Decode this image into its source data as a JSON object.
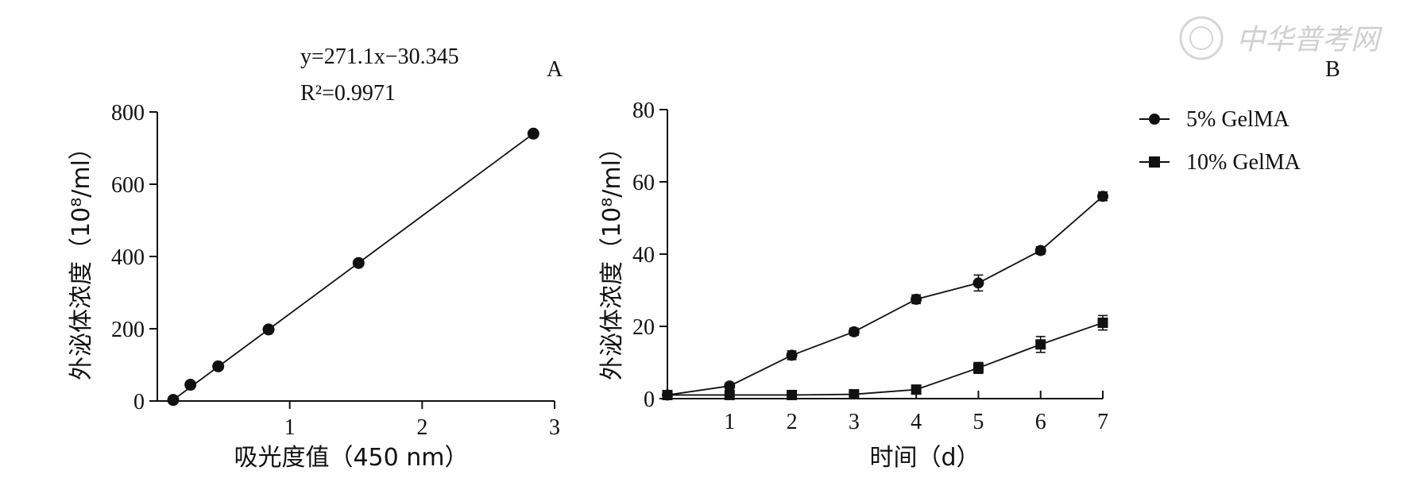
{
  "watermark": {
    "text": "中华普考网"
  },
  "chart_data": [
    {
      "panel": "A",
      "type": "scatter",
      "xlabel": "吸光度值（450 nm）",
      "ylabel": "外泌体浓度（10⁸/ml）",
      "xlim": [
        0,
        3
      ],
      "ylim": [
        0,
        800
      ],
      "xticks": [
        1,
        2,
        3
      ],
      "yticks": [
        0,
        200,
        400,
        600,
        800
      ],
      "x": [
        0.12,
        0.25,
        0.46,
        0.84,
        1.52,
        2.84
      ],
      "y": [
        3,
        45,
        96,
        198,
        382,
        740
      ],
      "fit": {
        "slope": 271.1,
        "intercept": -30.345,
        "equation": "y=271.1x−30.345",
        "r2": "R²=0.9971"
      },
      "grid": false
    },
    {
      "panel": "B",
      "type": "line",
      "xlabel": "时间（d）",
      "ylabel": "外泌体浓度（10⁸/ml）",
      "xlim": [
        0,
        7
      ],
      "ylim": [
        0,
        80
      ],
      "xticks": [
        1,
        2,
        3,
        4,
        5,
        6,
        7
      ],
      "yticks": [
        0,
        20,
        40,
        60,
        80
      ],
      "x": [
        0,
        1,
        2,
        3,
        4,
        5,
        6,
        7
      ],
      "series": [
        {
          "name": "5% GelMA",
          "marker": "circle",
          "values": [
            1,
            3.5,
            12,
            18.5,
            27.5,
            32,
            41,
            56
          ],
          "errors": [
            0.3,
            0.8,
            1.2,
            1.0,
            1.2,
            2.2,
            1.0,
            1.2
          ]
        },
        {
          "name": "10% GelMA",
          "marker": "square",
          "values": [
            1,
            1,
            1,
            1.2,
            2.5,
            8.5,
            15,
            21
          ],
          "errors": [
            0.2,
            0.2,
            0.2,
            0.3,
            0.4,
            1.5,
            2.2,
            2.0
          ]
        }
      ],
      "legend_position": "top-right",
      "grid": false
    }
  ]
}
